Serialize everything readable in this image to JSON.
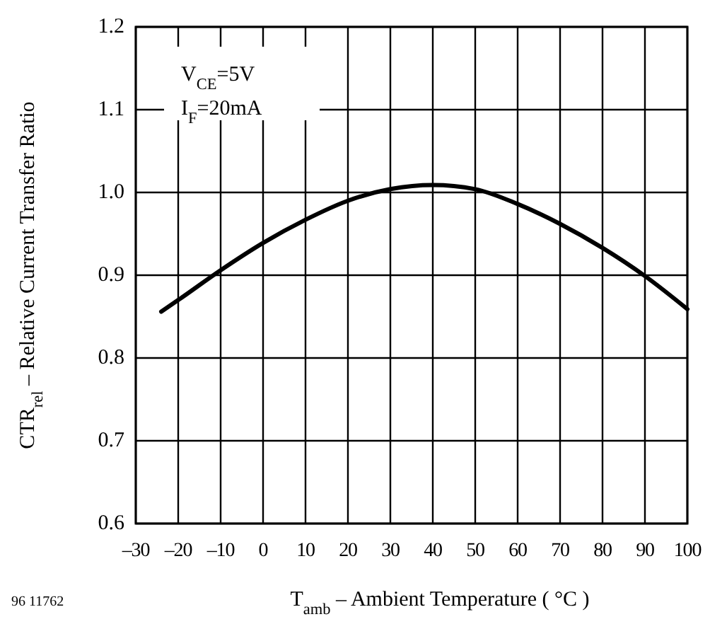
{
  "chart_data": {
    "type": "line",
    "xlabel": "T$_{amb}$ – Ambient Temperature ( °C )",
    "ylabel": "CTR$_{rel}$ – Relative Current Transfer Ratio",
    "annotations": [
      "V$_{CE}$=5V",
      "I$_{F}$=20mA",
      "96 11762"
    ],
    "series": [
      {
        "color": "#000000",
        "x": [
          -24,
          -20,
          -10,
          0,
          10,
          20,
          30,
          40,
          50,
          60,
          70,
          80,
          90,
          100
        ],
        "values": [
          0.856,
          0.87,
          0.906,
          0.939,
          0.967,
          0.99,
          1.004,
          1.009,
          1.004,
          0.986,
          0.962,
          0.933,
          0.899,
          0.859
        ]
      }
    ],
    "xlim": [
      -30,
      100
    ],
    "xticks": [
      {
        "value": -30,
        "label": "–30"
      },
      {
        "value": -20,
        "label": "–20"
      },
      {
        "value": -10,
        "label": "–10"
      },
      0,
      10,
      20,
      30,
      40,
      50,
      60,
      70,
      80,
      90,
      100
    ],
    "ylim": [
      0.6,
      1.2
    ],
    "yticks": [
      {
        "value": 0.6,
        "label": "0.6"
      },
      {
        "value": 0.7,
        "label": "0.7"
      },
      {
        "value": 0.8,
        "label": "0.8"
      },
      {
        "value": 0.9,
        "label": "0.9"
      },
      {
        "value": 1,
        "label": "1.0"
      },
      {
        "value": 1.1,
        "label": "1.1"
      },
      {
        "value": 1.2,
        "label": "1.2"
      }
    ],
    "grid": true,
    "marker": "none",
    "line_style": "solid"
  }
}
